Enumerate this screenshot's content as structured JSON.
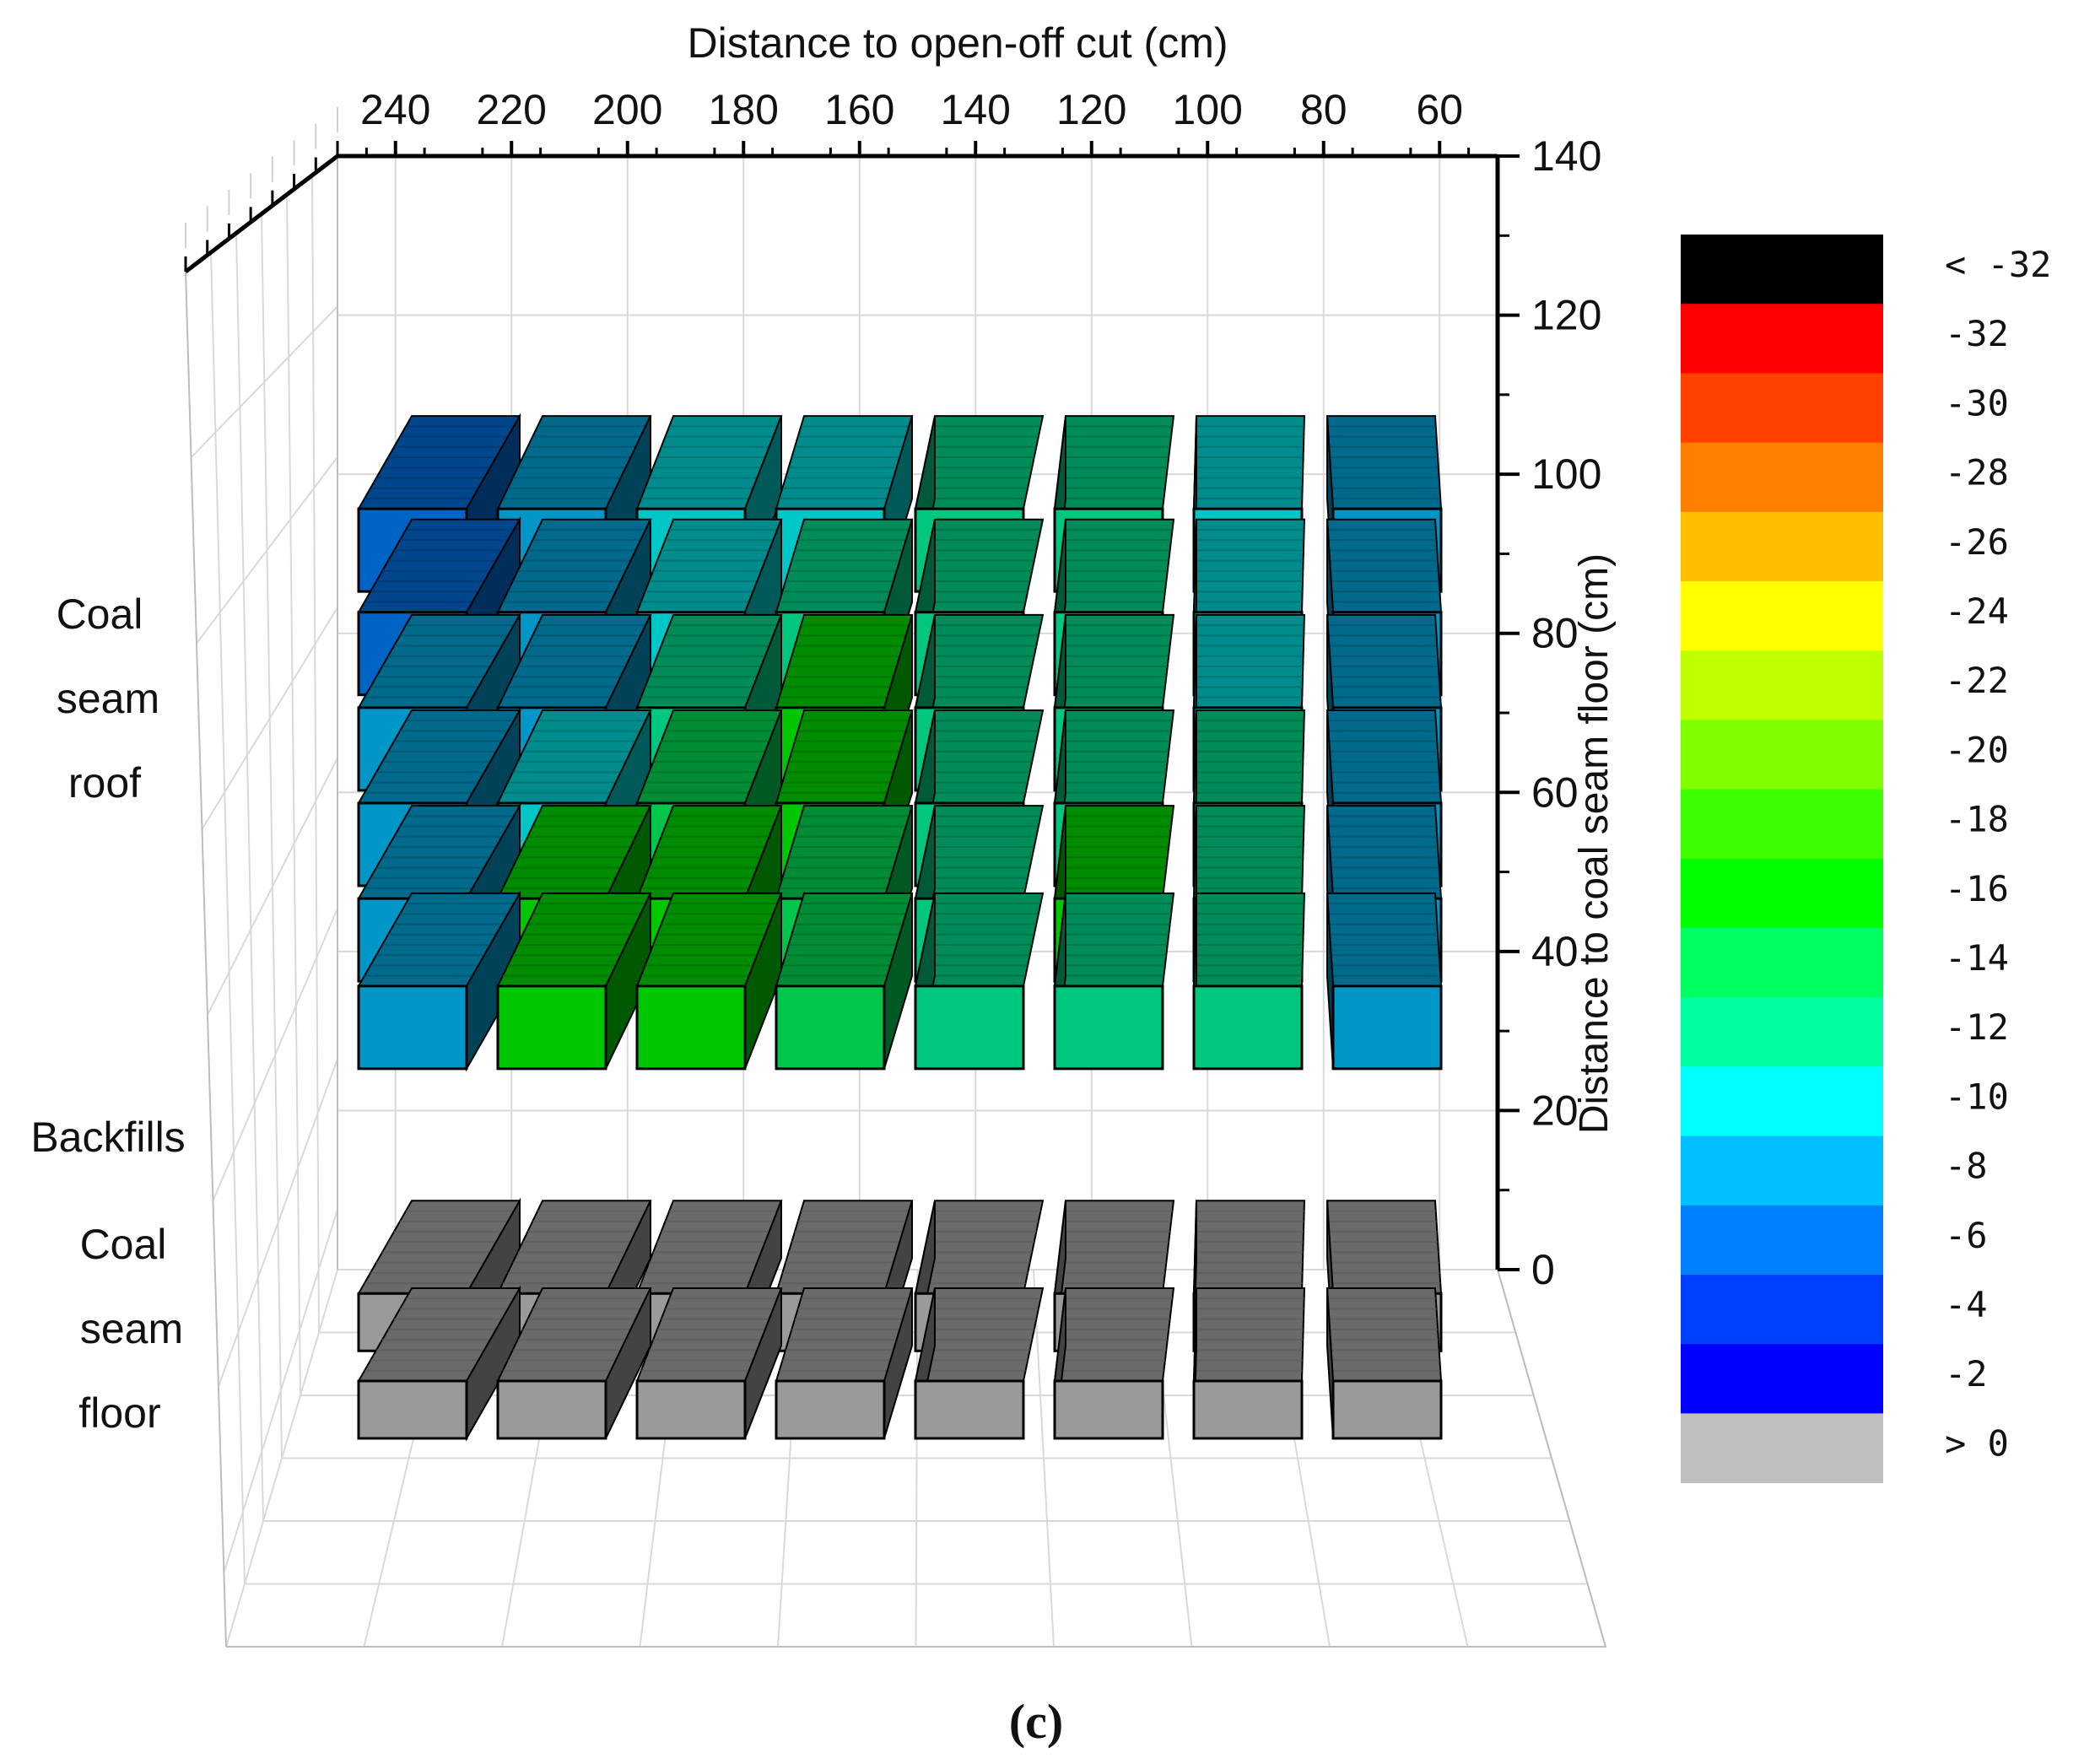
{
  "chart_data": {
    "type": "heatmap",
    "title": "",
    "x_axis": {
      "label": "Distance to open-off cut (cm)",
      "ticks": [
        240,
        220,
        200,
        180,
        160,
        140,
        120,
        100,
        80,
        60
      ],
      "reversed": true
    },
    "y_axis": {
      "label": "Distance to coal seam floor (cm)",
      "ticks": [
        0,
        20,
        40,
        60,
        80,
        100,
        120,
        140
      ],
      "ylim": [
        0,
        140
      ]
    },
    "region_labels": {
      "roof": [
        "Coal",
        "seam",
        "roof"
      ],
      "backfills": "Backfills",
      "floor": [
        "Coal",
        "seam",
        "floor"
      ]
    },
    "legend": {
      "placement": "right",
      "items": [
        {
          "label": "< -32",
          "color": "#000000"
        },
        {
          "label": "-32",
          "color": "#ff0000"
        },
        {
          "label": "-30",
          "color": "#ff4000"
        },
        {
          "label": "-28",
          "color": "#ff8000"
        },
        {
          "label": "-26",
          "color": "#ffbf00"
        },
        {
          "label": "-24",
          "color": "#ffff00"
        },
        {
          "label": "-22",
          "color": "#bfff00"
        },
        {
          "label": "-20",
          "color": "#80ff00"
        },
        {
          "label": "-18",
          "color": "#40ff00"
        },
        {
          "label": "-16",
          "color": "#00ff00"
        },
        {
          "label": "-14",
          "color": "#00ff60"
        },
        {
          "label": "-12",
          "color": "#00ffa0"
        },
        {
          "label": "-10",
          "color": "#00ffff"
        },
        {
          "label": "-8",
          "color": "#00c0ff"
        },
        {
          "label": "-6",
          "color": "#0080ff"
        },
        {
          "label": "-4",
          "color": "#0040ff"
        },
        {
          "label": "-2",
          "color": "#0000ff"
        },
        {
          "label": "> 0",
          "color": "#c0c0c0"
        }
      ]
    },
    "columns_x": [
      230,
      210,
      190,
      170,
      150,
      130,
      110,
      90
    ],
    "roof_rows_y": [
      93,
      80,
      68,
      56,
      44,
      33
    ],
    "roof_values": [
      [
        -5,
        -7,
        -9,
        -10,
        -12,
        -12,
        -10,
        -8
      ],
      [
        -5,
        -7,
        -9,
        -12,
        -12,
        -12,
        -10,
        -8
      ],
      [
        -7,
        -7,
        -12,
        -15,
        -12,
        -12,
        -10,
        -8
      ],
      [
        -7,
        -10,
        -14,
        -15,
        -12,
        -12,
        -12,
        -8
      ],
      [
        -7,
        -16,
        -16,
        -14,
        -12,
        -16,
        -12,
        -8
      ],
      [
        -7,
        -16,
        -16,
        -14,
        -12,
        -12,
        -12,
        -8
      ]
    ],
    "floor_rows_y": [
      -3,
      -14
    ],
    "floor_state": "> 0",
    "caption": "(c)"
  }
}
